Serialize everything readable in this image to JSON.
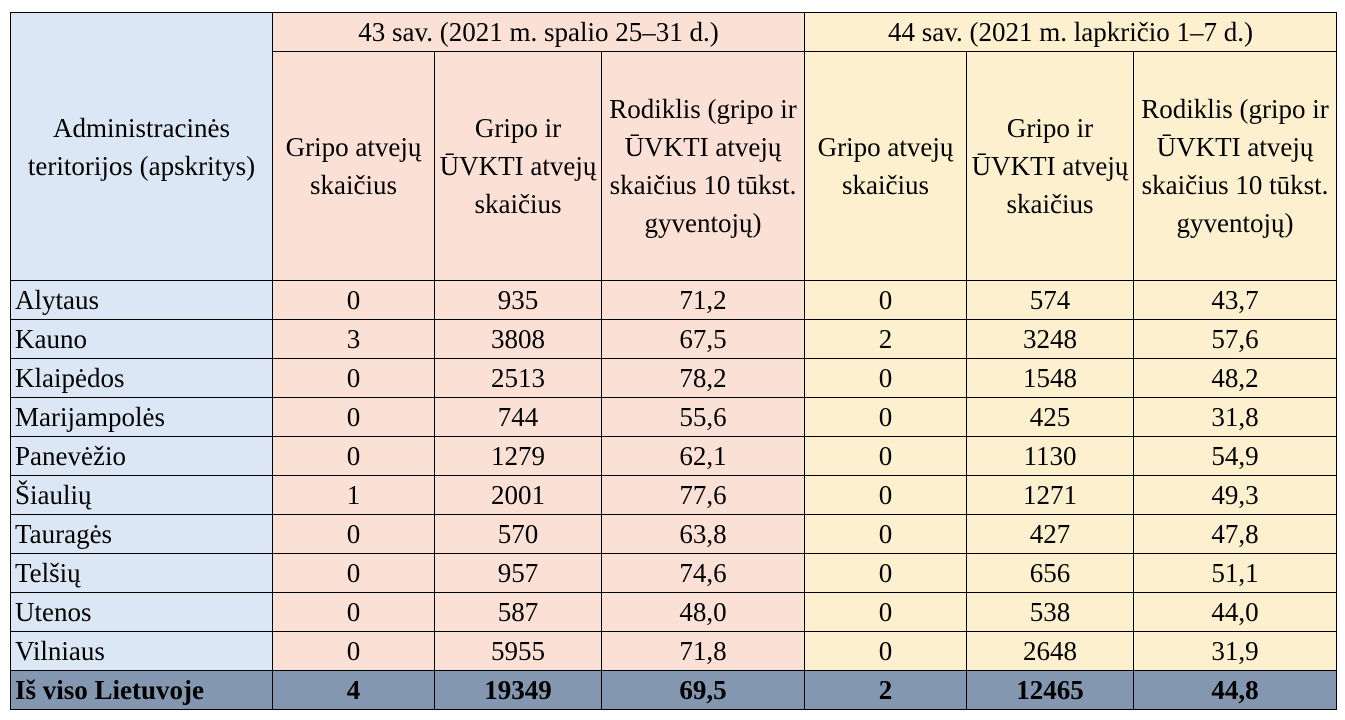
{
  "header": {
    "territory": "Administracinės teritorijos (apskritys)",
    "week43": "43 sav. (2021 m. spalio 25–31 d.)",
    "week44": "44 sav. (2021 m. lapkričio 1–7 d.)",
    "col_flu": "Gripo atvejų skaičius",
    "col_flu_arvi": "Gripo ir ŪVKTI atvejų skaičius",
    "col_rate": "Rodiklis (gripo ir ŪVKTI atvejų skaičius 10 tūkst. gyventojų)"
  },
  "rows": [
    {
      "name": "Alytaus",
      "c": [
        "0",
        "935",
        "71,2",
        "0",
        "574",
        "43,7"
      ]
    },
    {
      "name": "Kauno",
      "c": [
        "3",
        "3808",
        "67,5",
        "2",
        "3248",
        "57,6"
      ]
    },
    {
      "name": "Klaipėdos",
      "c": [
        "0",
        "2513",
        "78,2",
        "0",
        "1548",
        "48,2"
      ]
    },
    {
      "name": "Marijampolės",
      "c": [
        "0",
        "744",
        "55,6",
        "0",
        "425",
        "31,8"
      ]
    },
    {
      "name": "Panevėžio",
      "c": [
        "0",
        "1279",
        "62,1",
        "0",
        "1130",
        "54,9"
      ]
    },
    {
      "name": "Šiaulių",
      "c": [
        "1",
        "2001",
        "77,6",
        "0",
        "1271",
        "49,3"
      ]
    },
    {
      "name": "Tauragės",
      "c": [
        "0",
        "570",
        "63,8",
        "0",
        "427",
        "47,8"
      ]
    },
    {
      "name": "Telšių",
      "c": [
        "0",
        "957",
        "74,6",
        "0",
        "656",
        "51,1"
      ]
    },
    {
      "name": "Utenos",
      "c": [
        "0",
        "587",
        "48,0",
        "0",
        "538",
        "44,0"
      ]
    },
    {
      "name": "Vilniaus",
      "c": [
        "0",
        "5955",
        "71,8",
        "0",
        "2648",
        "31,9"
      ]
    }
  ],
  "total": {
    "name": "Iš viso Lietuvoje",
    "c": [
      "4",
      "19349",
      "69,5",
      "2",
      "12465",
      "44,8"
    ]
  }
}
